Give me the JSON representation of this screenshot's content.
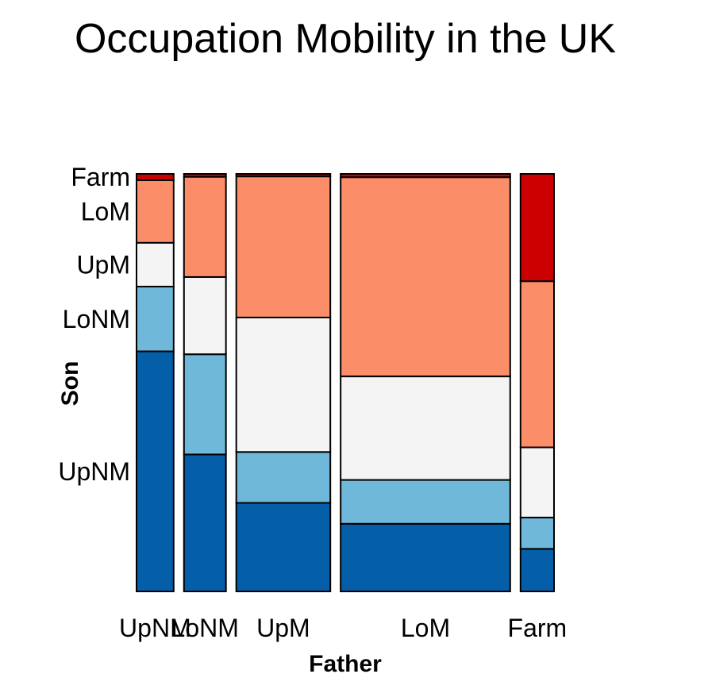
{
  "chart_data": {
    "type": "mosaic",
    "title": "Occupation Mobility in the UK",
    "xlabel": "Father",
    "ylabel": "Son",
    "x_categories": [
      "UpNM",
      "LoNM",
      "UpM",
      "LoM",
      "Farm"
    ],
    "y_categories": [
      "UpNM",
      "LoNM",
      "UpM",
      "LoM",
      "Farm"
    ],
    "x_shares": [
      0.092,
      0.104,
      0.233,
      0.42,
      0.083
    ],
    "proportions": {
      "UpNM": [
        0.575,
        0.155,
        0.105,
        0.15,
        0.015
      ],
      "LoNM": [
        0.328,
        0.24,
        0.185,
        0.24,
        0.007
      ],
      "UpM": [
        0.212,
        0.122,
        0.322,
        0.338,
        0.006
      ],
      "LoM": [
        0.162,
        0.105,
        0.248,
        0.477,
        0.008
      ],
      "Farm": [
        0.102,
        0.075,
        0.168,
        0.398,
        0.257
      ]
    },
    "colors": [
      "#045fa8",
      "#6fb8d9",
      "#f4f4f4",
      "#fc8d69",
      "#cc0000"
    ]
  }
}
